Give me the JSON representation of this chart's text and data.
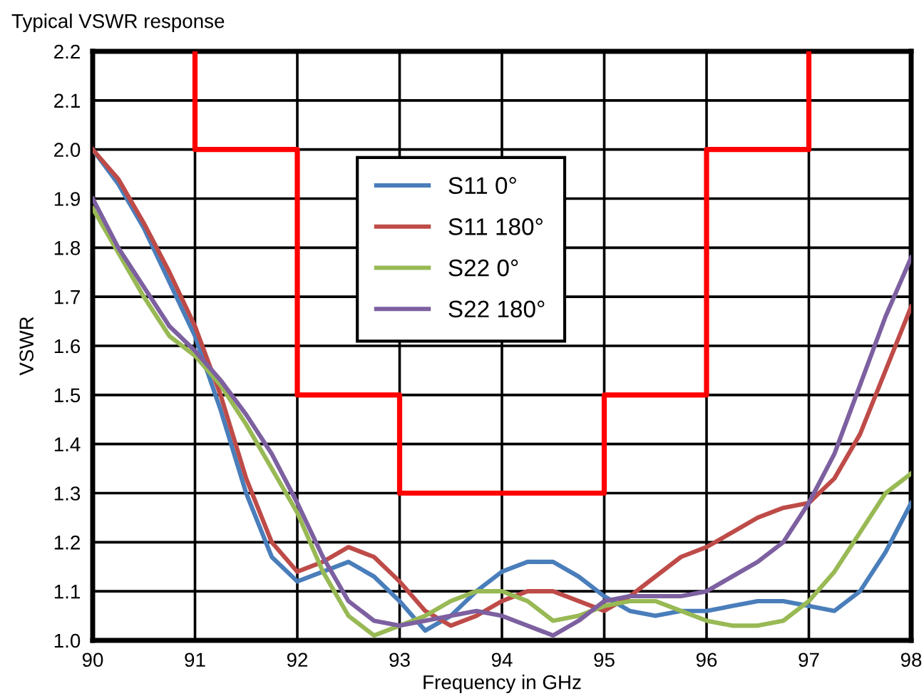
{
  "chart_data": {
    "type": "line",
    "title": "Typical VSWR response",
    "xlabel": "Frequency in GHz",
    "ylabel": "VSWR",
    "x": [
      90,
      90.25,
      90.5,
      90.75,
      91,
      91.25,
      91.5,
      91.75,
      92,
      92.25,
      92.5,
      92.75,
      93,
      93.25,
      93.5,
      93.75,
      94,
      94.25,
      94.5,
      94.75,
      95,
      95.25,
      95.5,
      95.75,
      96,
      96.25,
      96.5,
      96.75,
      97,
      97.25,
      97.5,
      97.75,
      98
    ],
    "series": [
      {
        "name": "S11 0°",
        "color": "#4a7ebb",
        "values": [
          2.0,
          1.93,
          1.84,
          1.73,
          1.62,
          1.47,
          1.3,
          1.17,
          1.12,
          1.14,
          1.16,
          1.13,
          1.08,
          1.02,
          1.05,
          1.1,
          1.14,
          1.16,
          1.16,
          1.13,
          1.09,
          1.06,
          1.05,
          1.06,
          1.06,
          1.07,
          1.08,
          1.08,
          1.07,
          1.06,
          1.1,
          1.18,
          1.28
        ]
      },
      {
        "name": "S11 180°",
        "color": "#be4b48",
        "values": [
          2.0,
          1.94,
          1.85,
          1.75,
          1.64,
          1.5,
          1.33,
          1.2,
          1.14,
          1.16,
          1.19,
          1.17,
          1.12,
          1.06,
          1.03,
          1.05,
          1.08,
          1.1,
          1.1,
          1.08,
          1.06,
          1.09,
          1.13,
          1.17,
          1.19,
          1.22,
          1.25,
          1.27,
          1.28,
          1.33,
          1.42,
          1.55,
          1.68
        ]
      },
      {
        "name": "S22 0°",
        "color": "#98b954",
        "values": [
          1.88,
          1.79,
          1.7,
          1.62,
          1.58,
          1.52,
          1.44,
          1.35,
          1.26,
          1.14,
          1.05,
          1.01,
          1.03,
          1.05,
          1.08,
          1.1,
          1.1,
          1.08,
          1.04,
          1.05,
          1.07,
          1.08,
          1.08,
          1.06,
          1.04,
          1.03,
          1.03,
          1.04,
          1.08,
          1.14,
          1.22,
          1.3,
          1.34
        ]
      },
      {
        "name": "S22 180°",
        "color": "#7d60a0",
        "values": [
          1.9,
          1.8,
          1.72,
          1.64,
          1.59,
          1.53,
          1.46,
          1.38,
          1.28,
          1.17,
          1.08,
          1.04,
          1.03,
          1.04,
          1.05,
          1.06,
          1.05,
          1.03,
          1.01,
          1.04,
          1.08,
          1.09,
          1.09,
          1.09,
          1.1,
          1.13,
          1.16,
          1.2,
          1.28,
          1.38,
          1.52,
          1.66,
          1.78
        ]
      },
      {
        "color": "#ff0000",
        "x": [
          91,
          91,
          92,
          92,
          93,
          93,
          95,
          95,
          96,
          96,
          97,
          97
        ],
        "values": [
          2.2,
          2.0,
          2.0,
          1.5,
          1.5,
          1.3,
          1.3,
          1.5,
          1.5,
          2.0,
          2.0,
          2.2
        ]
      }
    ],
    "xlim": [
      90,
      98
    ],
    "xticks": [
      90,
      91,
      92,
      93,
      94,
      95,
      96,
      97,
      98
    ],
    "ylim": [
      1.0,
      2.2
    ],
    "yticks": [
      {
        "value": 1,
        "label": "1.0"
      },
      1.1,
      1.2,
      1.3,
      1.4,
      1.5,
      1.6,
      1.7,
      1.8,
      1.9,
      {
        "value": 2,
        "label": "2.0"
      },
      2.1,
      2.2
    ],
    "grid": true,
    "legend": "top"
  }
}
